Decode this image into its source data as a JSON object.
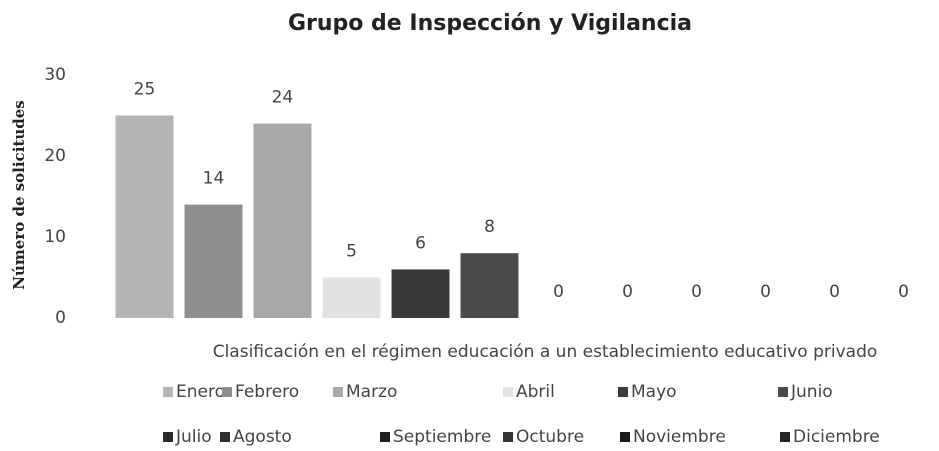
{
  "chart_data": {
    "type": "bar",
    "title": "Grupo de Inspección y Vigilancia",
    "y_label": "Número de solicitudes",
    "categories": [
      "Clasificación en el régimen educación a un establecimiento educativo privado"
    ],
    "series": [
      {
        "name": "Enero",
        "color": "#b4b4b4",
        "values": [
          25
        ]
      },
      {
        "name": "Febrero",
        "color": "#8f8f8f",
        "values": [
          14
        ]
      },
      {
        "name": "Marzo",
        "color": "#a8a8a8",
        "values": [
          24
        ]
      },
      {
        "name": "Abril",
        "color": "#e2e2e2",
        "values": [
          5
        ]
      },
      {
        "name": "Mayo",
        "color": "#3a3a3a",
        "values": [
          6
        ]
      },
      {
        "name": "Junio",
        "color": "#4a4a4a",
        "values": [
          8
        ]
      },
      {
        "name": "Julio",
        "color": "#2a2a2a",
        "values": [
          0
        ]
      },
      {
        "name": "Agosto",
        "color": "#303030",
        "values": [
          0
        ]
      },
      {
        "name": "Septiembre",
        "color": "#202020",
        "values": [
          0
        ]
      },
      {
        "name": "Octubre",
        "color": "#353535",
        "values": [
          0
        ]
      },
      {
        "name": "Noviembre",
        "color": "#1a1a1a",
        "values": [
          0
        ]
      },
      {
        "name": "Diciembre",
        "color": "#252525",
        "values": [
          0
        ]
      }
    ],
    "ylim": [
      0,
      30
    ],
    "yticks": [
      0,
      10,
      20,
      30
    ],
    "grid": false,
    "legend": "bottom"
  }
}
